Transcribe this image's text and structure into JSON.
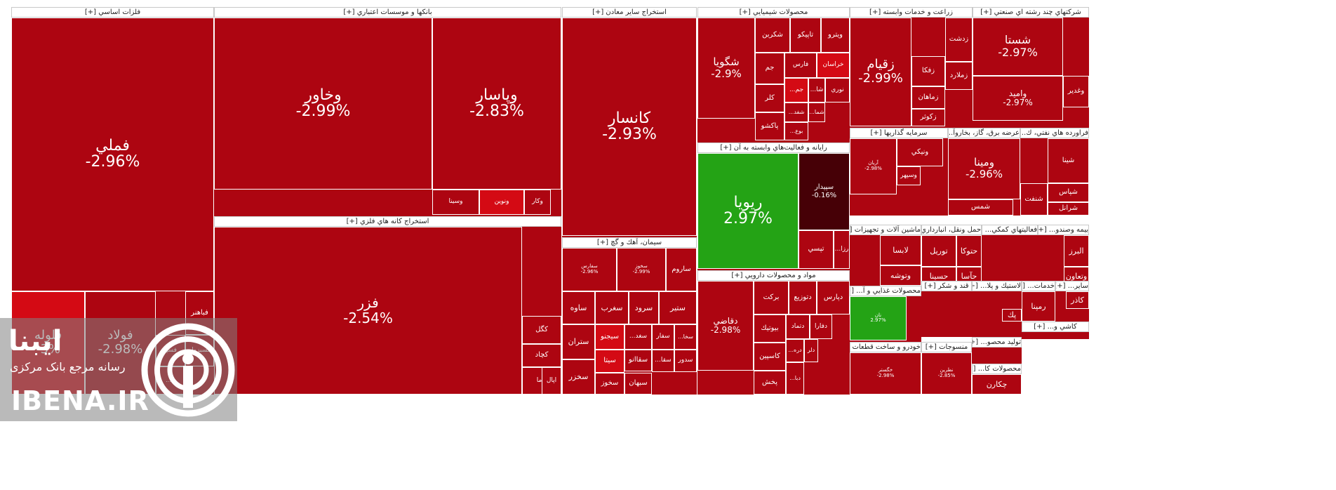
{
  "chart_data": {
    "type": "treemap",
    "metric": "daily change %",
    "colors": {
      "neg": "#ad0511",
      "neg_strong": "#d40a14",
      "dark": "#460006",
      "pos": "#24a315",
      "pos_light": "#3bd12a"
    },
    "sectors": [
      {
        "name": "فلزات اساسي [+]",
        "tiles": [
          {
            "name": "فملي",
            "change": "-2.96%"
          },
          {
            "name": "فولاد",
            "change": "-2.98%"
          },
          {
            "name": "فلوله",
            "change": "-3%"
          },
          {
            "name": "فباهنر",
            "change": ""
          },
          {
            "name": "فسپا",
            "change": ""
          },
          {
            "name": "فسبزوار",
            "change": ""
          },
          {
            "name": "فا...",
            "change": ""
          }
        ]
      },
      {
        "name": "بانكها و موسسات اعتباري [+]",
        "tiles": [
          {
            "name": "وخاور",
            "change": "-2.99%"
          },
          {
            "name": "وپاسار",
            "change": "-2.83%"
          },
          {
            "name": "وسينا",
            "change": ""
          },
          {
            "name": "ونوين",
            "change": ""
          },
          {
            "name": "وكار",
            "change": ""
          }
        ]
      },
      {
        "name": "استخراج كانه هاي فلزي [+]",
        "tiles": [
          {
            "name": "فزر",
            "change": "-2.54%"
          },
          {
            "name": "كگل",
            "change": ""
          },
          {
            "name": "كچاد",
            "change": ""
          },
          {
            "name": "كاما",
            "change": ""
          },
          {
            "name": "اپال",
            "change": ""
          }
        ]
      },
      {
        "name": "استخراج ساير معادن [+]",
        "tiles": [
          {
            "name": "كانسار",
            "change": "-2.93%"
          }
        ]
      },
      {
        "name": "سيمان، آهك و گچ [+]",
        "tiles": [
          {
            "name": "سفارس",
            "change": "-2.96%"
          },
          {
            "name": "سخوز",
            "change": "-2.99%"
          },
          {
            "name": "ساروم",
            "change": ""
          },
          {
            "name": "ساوه",
            "change": ""
          },
          {
            "name": "سغرب",
            "change": ""
          },
          {
            "name": "سرود",
            "change": ""
          },
          {
            "name": "ستير",
            "change": ""
          },
          {
            "name": "سيجنو",
            "change": ""
          },
          {
            "name": "سغد...",
            "change": ""
          },
          {
            "name": "سفار",
            "change": ""
          },
          {
            "name": "سخا...",
            "change": ""
          },
          {
            "name": "ستران",
            "change": ""
          },
          {
            "name": "سيتا",
            "change": ""
          },
          {
            "name": "سقاانو",
            "change": ""
          },
          {
            "name": "سقا...",
            "change": ""
          },
          {
            "name": "سدور",
            "change": ""
          },
          {
            "name": "سخزر",
            "change": ""
          },
          {
            "name": "سخوز",
            "change": ""
          },
          {
            "name": "سبهان",
            "change": ""
          }
        ]
      },
      {
        "name": "محصولات شيميايي [+]",
        "tiles": [
          {
            "name": "شگويا",
            "change": "-2.9%"
          },
          {
            "name": "شكربن",
            "change": ""
          },
          {
            "name": "تاپيكو",
            "change": ""
          },
          {
            "name": "ويترو",
            "change": ""
          },
          {
            "name": "جم",
            "change": ""
          },
          {
            "name": "فارس",
            "change": ""
          },
          {
            "name": "خراسان",
            "change": ""
          },
          {
            "name": "كلر",
            "change": ""
          },
          {
            "name": "جم...",
            "change": ""
          },
          {
            "name": "شا...",
            "change": ""
          },
          {
            "name": "نوري",
            "change": ""
          },
          {
            "name": "پاكشو",
            "change": ""
          },
          {
            "name": "شفد...",
            "change": ""
          },
          {
            "name": "شما...",
            "change": ""
          },
          {
            "name": "بوع...",
            "change": ""
          }
        ]
      },
      {
        "name": "رايانه و فعاليت‌هاي وابسته به آن [+]",
        "tiles": [
          {
            "name": "ريويا",
            "change": "2.97%"
          },
          {
            "name": "سپيدار",
            "change": "-0.16%"
          },
          {
            "name": "تپسي",
            "change": ""
          },
          {
            "name": "رزا...",
            "change": ""
          }
        ]
      },
      {
        "name": "مواد و محصولات دارويي [+]",
        "tiles": [
          {
            "name": "دقاضي",
            "change": "-2.98%"
          },
          {
            "name": "بركت",
            "change": ""
          },
          {
            "name": "دتوزيع",
            "change": ""
          },
          {
            "name": "دپارس",
            "change": ""
          },
          {
            "name": "بيوتيك",
            "change": ""
          },
          {
            "name": "دتماد",
            "change": ""
          },
          {
            "name": "دفارا",
            "change": ""
          },
          {
            "name": "كاسپين",
            "change": ""
          },
          {
            "name": "دره...",
            "change": ""
          },
          {
            "name": "دلر",
            "change": ""
          },
          {
            "name": "پخش",
            "change": ""
          },
          {
            "name": "دبا...",
            "change": ""
          }
        ]
      },
      {
        "name": "زراعت و خدمات وابسته [+]",
        "tiles": [
          {
            "name": "زقيام",
            "change": "-2.99%"
          },
          {
            "name": "زدشت",
            "change": ""
          },
          {
            "name": "زفكا",
            "change": ""
          },
          {
            "name": "زملارد",
            "change": ""
          },
          {
            "name": "زماهان",
            "change": ""
          },
          {
            "name": "زكوثر",
            "change": ""
          }
        ]
      },
      {
        "name": "شركتهاي چند رشته اي صنعتي [+]",
        "tiles": [
          {
            "name": "شستا",
            "change": "-2.97%"
          },
          {
            "name": "وامید",
            "change": "-2.97%"
          },
          {
            "name": "وغدير",
            "change": ""
          }
        ]
      },
      {
        "name": "سرمايه گذاريها [+]",
        "tiles": [
          {
            "name": "ونيكي",
            "change": ""
          },
          {
            "name": "وسپهر",
            "change": ""
          },
          {
            "name": "آريان",
            "change": "-2.98%"
          }
        ]
      },
      {
        "name": "عرضه برق، گاز، بخاروآ... [+]",
        "tiles": [
          {
            "name": "ومينا",
            "change": "-2.96%"
          },
          {
            "name": "شمس",
            "change": ""
          }
        ]
      },
      {
        "name": "فراورده هاي نفتي، ك... [+]",
        "tiles": [
          {
            "name": "شينا",
            "change": ""
          },
          {
            "name": "شپاس",
            "change": ""
          },
          {
            "name": "شنفت",
            "change": ""
          },
          {
            "name": "شرانل",
            "change": ""
          }
        ]
      },
      {
        "name": "ماشين آلات و تجهيزات [+]",
        "tiles": [
          {
            "name": "لابسا",
            "change": ""
          },
          {
            "name": "وتوشه",
            "change": ""
          }
        ]
      },
      {
        "name": "حمل ونقل، انبارداري... [+]",
        "tiles": [
          {
            "name": "توريل",
            "change": ""
          },
          {
            "name": "حتوكا",
            "change": ""
          },
          {
            "name": "حسينا",
            "change": ""
          },
          {
            "name": "حآسا",
            "change": ""
          }
        ]
      },
      {
        "name": "فعاليتهاي كمكي... [+]",
        "tiles": []
      },
      {
        "name": "بيمه وصندو... [+]",
        "tiles": [
          {
            "name": "البرز",
            "change": ""
          },
          {
            "name": "وتعاون",
            "change": ""
          }
        ]
      },
      {
        "name": "محصولات غذايي و آ... [+]",
        "tiles": [
          {
            "name": "نان",
            "change": "2.97%"
          }
        ]
      },
      {
        "name": "قند و شكر [+]",
        "tiles": []
      },
      {
        "name": "لاستيك و پلا... [+]",
        "tiles": [
          {
            "name": "پك",
            "change": ""
          }
        ]
      },
      {
        "name": "خدمات... [+]",
        "tiles": [
          {
            "name": "رمپنا",
            "change": ""
          }
        ]
      },
      {
        "name": "ساير... [+]",
        "tiles": [
          {
            "name": "كاذر",
            "change": ""
          }
        ]
      },
      {
        "name": "كاشي و... [+]",
        "tiles": []
      },
      {
        "name": "توليد محصو... [+]",
        "tiles": []
      },
      {
        "name": "خودرو و ساخت قطعات [+]",
        "tiles": [
          {
            "name": "خگستر",
            "change": "-2.98%"
          }
        ]
      },
      {
        "name": "منسوجات [+]",
        "tiles": [
          {
            "name": "نطرين",
            "change": "-2.85%"
          }
        ]
      },
      {
        "name": "محصولات كا... [+]",
        "tiles": [
          {
            "name": "چكارن",
            "change": ""
          }
        ]
      }
    ]
  },
  "watermark": {
    "brand_fa": "ایبنا",
    "brand_sub": "رسانه مرجع بانک مرکزی",
    "brand_en": "IBENA.IR"
  }
}
